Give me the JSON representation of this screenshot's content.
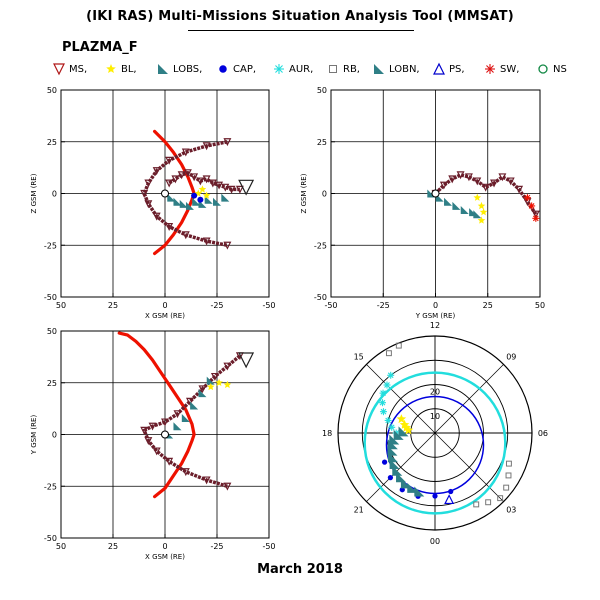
{
  "header": {
    "title": "(IKI RAS) Multi-Missions Situation Analysis Tool (MMSAT)",
    "subtitle": "PLAZMA_F"
  },
  "legend": [
    {
      "label": "MS,",
      "marker": "triangle-down-open",
      "color": "#b01818"
    },
    {
      "label": "BL,",
      "marker": "star",
      "color": "#ffee00"
    },
    {
      "label": "LOBS,",
      "marker": "triangle-filled",
      "color": "#2f7f86"
    },
    {
      "label": "CAP,",
      "marker": "circle-filled",
      "color": "#0000dd"
    },
    {
      "label": "AUR,",
      "marker": "asterisk",
      "color": "#22dddd"
    },
    {
      "label": "RB,",
      "marker": "square-open",
      "color": "#777777"
    },
    {
      "label": "LOBN,",
      "marker": "triangle-filled",
      "color": "#2f7f86"
    },
    {
      "label": "PS,",
      "marker": "triangle-open",
      "color": "#0000cc"
    },
    {
      "label": "SW,",
      "marker": "asterisk",
      "color": "#dd1111"
    },
    {
      "label": "NS",
      "marker": "circle-open",
      "color": "#118844"
    }
  ],
  "colors": {
    "magnetopause": "#ee1100",
    "orbit": "#6b1e2b",
    "lobes": "#2f7f86",
    "cap": "#0000dd",
    "aurora": "#22dddd",
    "boundary_layer": "#ffee00",
    "radiation_belts": "#777777"
  },
  "footer": {
    "date": "March 2018"
  },
  "chart_data": [
    {
      "type": "scatter",
      "panel": "XZ",
      "xlabel": "X GSM (RE)",
      "ylabel": "Z GSM (RE)",
      "xlim": [
        50,
        -50
      ],
      "ylim": [
        -50,
        50
      ],
      "xticks": [
        "50",
        "25",
        "0",
        "-25",
        "-50"
      ],
      "yticks": [
        "-50",
        "-25",
        "0",
        "25",
        "50"
      ],
      "grid": true,
      "series": [
        {
          "name": "",
          "kind": "magnetopause",
          "x": [
            5,
            0,
            -4,
            -8,
            -11,
            -13,
            -14,
            -13,
            -11,
            -8,
            -4,
            0,
            5
          ],
          "y": [
            -29,
            -25,
            -20,
            -14,
            -8,
            -3,
            0,
            3,
            8,
            14,
            20,
            25,
            30
          ]
        },
        {
          "name": "",
          "kind": "orbit-outer",
          "x": [
            -30,
            -20,
            -10,
            -2,
            4,
            8,
            10,
            8,
            4,
            -2,
            -10,
            -20,
            -30
          ],
          "y": [
            25,
            23,
            20,
            16,
            11,
            5,
            0,
            -5,
            -11,
            -16,
            -20,
            -23,
            -25
          ]
        },
        {
          "name": "",
          "kind": "orbit-loops",
          "x": [
            -2,
            -5,
            -8,
            -11,
            -14,
            -17,
            -20,
            -23,
            -26,
            -29,
            -32,
            -36
          ],
          "y": [
            5,
            7,
            9,
            10,
            8,
            6,
            7,
            5,
            4,
            3,
            2,
            2
          ]
        },
        {
          "name": "",
          "kind": "lobes",
          "x": [
            -3,
            -6,
            -9,
            -12,
            -15,
            -18,
            -21,
            -25,
            -29
          ],
          "y": [
            -2,
            -4,
            -5,
            -6,
            -4,
            -5,
            -3,
            -4,
            -2
          ]
        },
        {
          "name": "",
          "kind": "boundary-layer",
          "x": [
            -16,
            -18,
            -20
          ],
          "y": [
            0,
            2,
            -1
          ]
        },
        {
          "name": "",
          "kind": "cap",
          "x": [
            -14,
            -17
          ],
          "y": [
            -1,
            -3
          ]
        },
        {
          "name": "",
          "kind": "magnetosheath",
          "x": [
            -39
          ],
          "y": [
            3
          ]
        }
      ]
    },
    {
      "type": "scatter",
      "panel": "YZ",
      "xlabel": "Y GSM (RE)",
      "ylabel": "Z GSM (RE)",
      "xlim": [
        -50,
        50
      ],
      "ylim": [
        -50,
        50
      ],
      "xticks": [
        "-50",
        "-25",
        "0",
        "25",
        "50"
      ],
      "yticks": [
        "-50",
        "-25",
        "0",
        "25",
        "50"
      ],
      "grid": true,
      "series": [
        {
          "name": "",
          "kind": "orbit",
          "x": [
            0,
            4,
            8,
            12,
            16,
            20,
            24,
            28,
            32,
            36,
            40,
            44,
            48
          ],
          "y": [
            0,
            4,
            7,
            9,
            8,
            6,
            3,
            5,
            8,
            6,
            2,
            -4,
            -10
          ]
        },
        {
          "name": "",
          "kind": "lobes",
          "x": [
            -2,
            2,
            6,
            10,
            14,
            18,
            20
          ],
          "y": [
            0,
            -2,
            -4,
            -6,
            -8,
            -9,
            -10
          ]
        },
        {
          "name": "",
          "kind": "boundary-layer",
          "x": [
            20,
            22,
            23,
            22
          ],
          "y": [
            -2,
            -6,
            -9,
            -13
          ]
        },
        {
          "name": "",
          "kind": "solar-wind",
          "x": [
            44,
            46,
            48
          ],
          "y": [
            -2,
            -6,
            -12
          ]
        }
      ]
    },
    {
      "type": "scatter",
      "panel": "XY",
      "xlabel": "X GSM (RE)",
      "ylabel": "Y GSM (RE)",
      "xlim": [
        50,
        -50
      ],
      "ylim": [
        -50,
        50
      ],
      "xticks": [
        "50",
        "25",
        "0",
        "-25",
        "-50"
      ],
      "yticks": [
        "-50",
        "-25",
        "0",
        "25",
        "50"
      ],
      "grid": true,
      "series": [
        {
          "name": "",
          "kind": "magnetopause",
          "x": [
            5,
            0,
            -4,
            -8,
            -11,
            -13,
            -14,
            -13,
            -10,
            -6,
            -2,
            2,
            6,
            10,
            14,
            18,
            22
          ],
          "y": [
            -30,
            -26,
            -20,
            -14,
            -8,
            -3,
            0,
            5,
            12,
            18,
            24,
            30,
            36,
            41,
            45,
            48,
            49
          ]
        },
        {
          "name": "",
          "kind": "orbit",
          "x": [
            -30,
            -20,
            -10,
            -2,
            4,
            8,
            10,
            6,
            0,
            -6,
            -12,
            -18,
            -24,
            -30,
            -36
          ],
          "y": [
            -25,
            -22,
            -18,
            -13,
            -8,
            -3,
            2,
            4,
            6,
            10,
            16,
            22,
            28,
            33,
            38
          ]
        },
        {
          "name": "",
          "kind": "lobes",
          "x": [
            -2,
            -6,
            -10,
            -14,
            -18,
            -22
          ],
          "y": [
            0,
            4,
            8,
            14,
            20,
            26
          ]
        },
        {
          "name": "",
          "kind": "boundary-layer",
          "x": [
            -22,
            -26,
            -30
          ],
          "y": [
            23,
            25,
            24
          ]
        },
        {
          "name": "",
          "kind": "magnetosheath",
          "x": [
            -39
          ],
          "y": [
            36
          ]
        }
      ]
    },
    {
      "type": "polar",
      "panel": "MLT-latitude",
      "angular_labels": [
        "12",
        "15",
        "18",
        "21",
        "00",
        "03",
        "06",
        "09"
      ],
      "radial_labels": [
        "10",
        "20"
      ],
      "series": [
        {
          "name": "",
          "kind": "cap",
          "ring_colat": 20,
          "points_mlt": [
            20,
            21,
            22,
            23,
            0,
            1
          ],
          "points_colat": [
            24,
            26,
            27,
            27,
            26,
            25
          ]
        },
        {
          "name": "",
          "kind": "aurora",
          "ring_colat": 29,
          "points_mlt": [
            14.5,
            15,
            15.5,
            16,
            16.5,
            17,
            17.5,
            18
          ],
          "points_colat": [
            30,
            28,
            27,
            25,
            23,
            20,
            18,
            16
          ]
        },
        {
          "name": "",
          "kind": "lobes",
          "points_mlt": [
            17.8,
            18.2,
            18.6,
            19,
            19.5,
            20,
            20.5,
            21,
            21.5,
            22,
            22.5,
            23
          ],
          "points_colat": [
            13,
            15,
            17,
            18,
            19,
            20,
            21,
            22,
            23,
            24,
            24.5,
            25
          ]
        },
        {
          "name": "",
          "kind": "boundary-layer",
          "points_mlt": [
            16.5,
            17,
            17.3,
            17.6
          ],
          "points_colat": [
            15,
            13,
            12,
            11
          ]
        },
        {
          "name": "",
          "kind": "radiation-belts",
          "points_mlt": [
            13.5,
            14,
            2,
            2.5,
            3,
            3.5,
            4,
            4.5
          ],
          "points_colat": [
            39,
            38,
            34,
            36,
            38,
            37,
            35,
            33
          ]
        },
        {
          "name": "",
          "kind": "plasma-sheet",
          "points_mlt": [
            0.8
          ],
          "points_colat": [
            28
          ]
        }
      ]
    }
  ]
}
